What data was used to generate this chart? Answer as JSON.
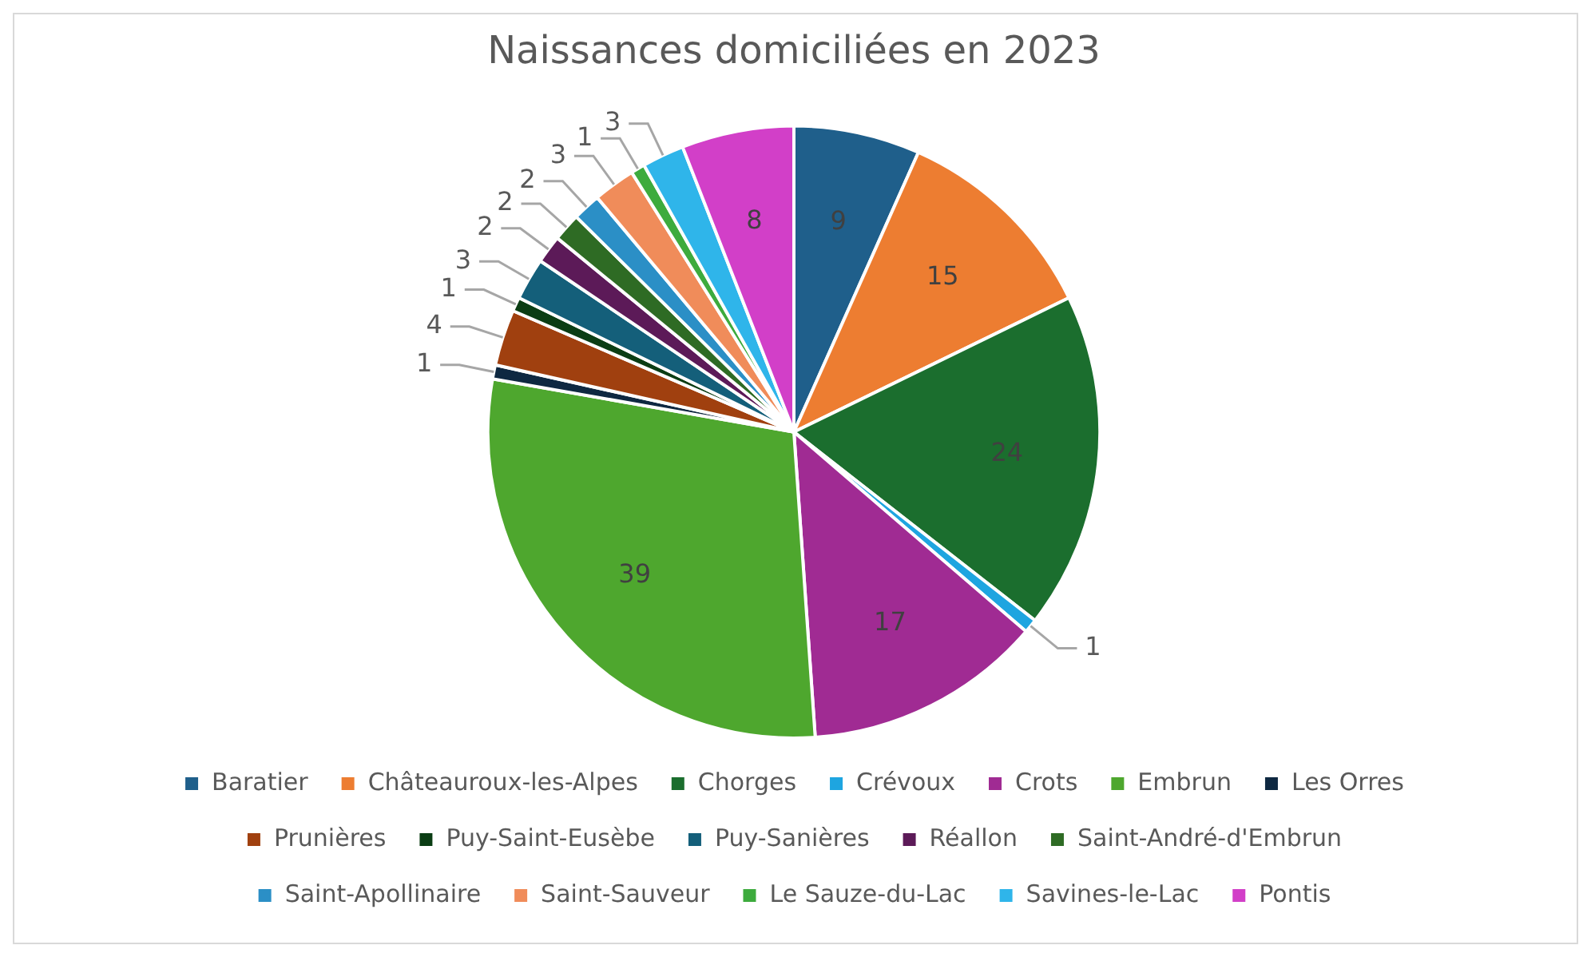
{
  "chart_data": {
    "type": "pie",
    "title": "Naissances domiciliées en 2023",
    "categories": [
      "Baratier",
      "Châteauroux-les-Alpes",
      "Chorges",
      "Crévoux",
      "Crots",
      "Embrun",
      "Les Orres",
      "Prunières",
      "Puy-Saint-Eusèbe",
      "Puy-Sanières",
      "Réallon",
      "Saint-André-d'Embrun",
      "Saint-Apollinaire",
      "Saint-Sauveur",
      "Le Sauze-du-Lac",
      "Savines-le-Lac",
      "Pontis"
    ],
    "values": [
      9,
      15,
      24,
      1,
      17,
      39,
      1,
      4,
      1,
      3,
      2,
      2,
      2,
      3,
      1,
      3,
      8
    ],
    "colors": [
      "#1f5f8b",
      "#ed7d31",
      "#1b6e2e",
      "#1ea5e0",
      "#a02b93",
      "#4ea72e",
      "#0e2841",
      "#a0400f",
      "#0b3d14",
      "#145f7a",
      "#5c1a58",
      "#2e6b24",
      "#2b8fc6",
      "#f08c5a",
      "#3dab3d",
      "#2fb5ea",
      "#d23fc8"
    ],
    "data_labels": true,
    "legend": "bottom"
  }
}
